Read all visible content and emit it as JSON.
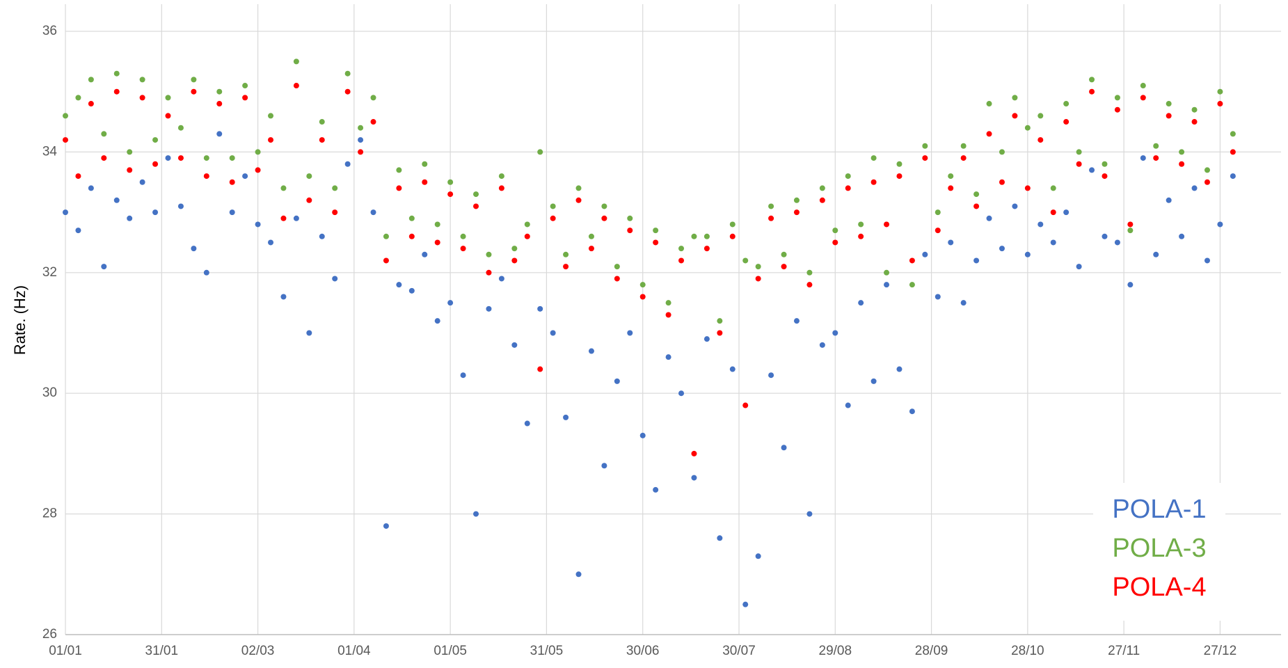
{
  "chart_data": {
    "type": "scatter",
    "ylabel": "Rate.  (Hz)",
    "x": [
      0,
      4,
      8,
      12,
      16,
      20,
      24,
      28,
      32,
      36,
      40,
      44,
      48,
      52,
      56,
      60,
      64,
      68,
      72,
      76,
      80,
      84,
      88,
      92,
      96,
      100,
      104,
      108,
      112,
      116,
      120,
      124,
      128,
      132,
      136,
      140,
      144,
      148,
      152,
      156,
      160,
      164,
      168,
      172,
      176,
      180,
      184,
      188,
      192,
      196,
      200,
      204,
      208,
      212,
      216,
      220,
      224,
      228,
      232,
      236,
      240,
      244,
      248,
      252,
      256,
      260,
      264,
      268,
      272,
      276,
      280,
      284,
      288,
      292,
      296,
      300,
      304,
      308,
      312,
      316,
      320,
      324,
      328,
      332,
      336,
      340,
      344,
      348,
      352,
      356,
      360,
      364
    ],
    "series": [
      {
        "name": "POLA-1",
        "color": "#4472c4",
        "values": [
          33.0,
          32.7,
          33.4,
          32.1,
          33.2,
          32.9,
          33.5,
          33.0,
          33.9,
          33.1,
          32.4,
          32.0,
          34.3,
          33.0,
          33.6,
          32.8,
          32.5,
          31.6,
          32.9,
          31.0,
          32.6,
          31.9,
          33.8,
          34.2,
          33.0,
          27.8,
          31.8,
          31.7,
          32.3,
          31.2,
          31.5,
          30.3,
          28.0,
          31.4,
          31.9,
          30.8,
          29.5,
          31.4,
          31.0,
          29.6,
          27.0,
          30.7,
          28.8,
          30.2,
          31.0,
          29.3,
          28.4,
          30.6,
          30.0,
          28.6,
          30.9,
          27.6,
          30.4,
          26.5,
          27.3,
          30.3,
          29.1,
          31.2,
          28.0,
          30.8,
          31.0,
          29.8,
          31.5,
          30.2,
          31.8,
          30.4,
          29.7,
          32.3,
          31.6,
          32.5,
          31.5,
          32.2,
          32.9,
          32.4,
          33.1,
          32.3,
          32.8,
          32.5,
          33.0,
          32.1,
          33.7,
          32.6,
          32.5,
          31.8,
          33.9,
          32.3,
          33.2,
          32.6,
          33.4,
          32.2,
          32.8,
          33.6
        ]
      },
      {
        "name": "POLA-3",
        "color": "#70ad47",
        "values": [
          34.6,
          34.9,
          35.2,
          34.3,
          35.3,
          34.0,
          35.2,
          34.2,
          34.9,
          34.4,
          35.2,
          33.9,
          35.0,
          33.9,
          35.1,
          34.0,
          34.6,
          33.4,
          35.5,
          33.6,
          34.5,
          33.4,
          35.3,
          34.4,
          34.9,
          32.6,
          33.7,
          32.9,
          33.8,
          32.8,
          33.5,
          32.6,
          33.3,
          32.3,
          33.6,
          32.4,
          32.8,
          34.0,
          33.1,
          32.3,
          33.4,
          32.6,
          33.1,
          32.1,
          32.9,
          31.8,
          32.7,
          31.5,
          32.4,
          32.6,
          32.6,
          31.2,
          32.8,
          32.2,
          32.1,
          33.1,
          32.3,
          33.2,
          32.0,
          33.4,
          32.7,
          33.6,
          32.8,
          33.9,
          32.0,
          33.8,
          31.8,
          34.1,
          33.0,
          33.6,
          34.1,
          33.3,
          34.8,
          34.0,
          34.9,
          34.4,
          34.6,
          33.4,
          34.8,
          34.0,
          35.2,
          33.8,
          34.9,
          32.7,
          35.1,
          34.1,
          34.8,
          34.0,
          34.7,
          33.7,
          35.0,
          34.3
        ]
      },
      {
        "name": "POLA-4",
        "color": "#ff0000",
        "values": [
          34.2,
          33.6,
          34.8,
          33.9,
          35.0,
          33.7,
          34.9,
          33.8,
          34.6,
          33.9,
          35.0,
          33.6,
          34.8,
          33.5,
          34.9,
          33.7,
          34.2,
          32.9,
          35.1,
          33.2,
          34.2,
          33.0,
          35.0,
          34.0,
          34.5,
          32.2,
          33.4,
          32.6,
          33.5,
          32.5,
          33.3,
          32.4,
          33.1,
          32.0,
          33.4,
          32.2,
          32.6,
          30.4,
          32.9,
          32.1,
          33.2,
          32.4,
          32.9,
          31.9,
          32.7,
          31.6,
          32.5,
          31.3,
          32.2,
          29.0,
          32.4,
          31.0,
          32.6,
          29.8,
          31.9,
          32.9,
          32.1,
          33.0,
          31.8,
          33.2,
          32.5,
          33.4,
          32.6,
          33.5,
          32.8,
          33.6,
          32.2,
          33.9,
          32.7,
          33.4,
          33.9,
          33.1,
          34.3,
          33.5,
          34.6,
          33.4,
          34.2,
          33.0,
          34.5,
          33.8,
          35.0,
          33.6,
          34.7,
          32.8,
          34.9,
          33.9,
          34.6,
          33.8,
          34.5,
          33.5,
          34.8,
          34.0
        ]
      }
    ],
    "xlim": [
      0,
      379
    ],
    "xticks": [
      {
        "value": 0,
        "label": "01/01"
      },
      {
        "value": 30,
        "label": "31/01"
      },
      {
        "value": 60,
        "label": "02/03"
      },
      {
        "value": 90,
        "label": "01/04"
      },
      {
        "value": 120,
        "label": "01/05"
      },
      {
        "value": 150,
        "label": "31/05"
      },
      {
        "value": 180,
        "label": "30/06"
      },
      {
        "value": 210,
        "label": "30/07"
      },
      {
        "value": 240,
        "label": "29/08"
      },
      {
        "value": 270,
        "label": "28/09"
      },
      {
        "value": 300,
        "label": "28/10"
      },
      {
        "value": 330,
        "label": "27/11"
      },
      {
        "value": 360,
        "label": "27/12"
      }
    ],
    "ylim": [
      26,
      36.45
    ],
    "yticks": [
      26,
      28,
      30,
      32,
      34,
      36
    ],
    "grid": true,
    "legend": "lower right"
  }
}
